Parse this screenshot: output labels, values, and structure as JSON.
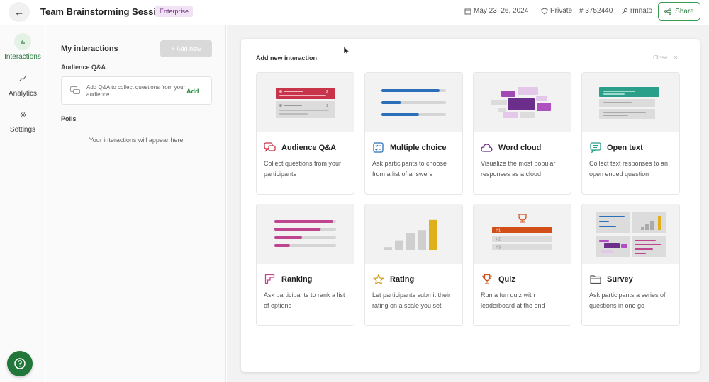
{
  "header": {
    "back_icon": "arrow-left-icon",
    "title": "Team Brainstorming Session",
    "badge": "Enterprise",
    "dates": "May 23–26, 2024",
    "privacy": "Private",
    "code": "# 3752440",
    "owner": "rmnato",
    "share_label": "Share"
  },
  "rail": {
    "items": [
      {
        "label": "Interactions",
        "icon": "bar-chart-icon",
        "active": true
      },
      {
        "label": "Analytics",
        "icon": "trend-up-icon",
        "active": false
      },
      {
        "label": "Settings",
        "icon": "gear-icon",
        "active": false
      }
    ],
    "help_icon": "help-icon"
  },
  "panel": {
    "title": "My interactions",
    "add_new_label": "+ Add new",
    "qa_section": "Audience Q&A",
    "qa_prompt": "Add Q&A to collect questions from your audience",
    "qa_add": "Add",
    "polls_section": "Polls",
    "empty_text": "Your interactions will appear here"
  },
  "dialog": {
    "title": "Add new interaction",
    "close_label": "Close",
    "cards": [
      {
        "title": "Audience Q&A",
        "desc": "Collect questions from your participants",
        "icon": "chat-bubbles-icon",
        "preview_votes": [
          "2",
          "1"
        ]
      },
      {
        "title": "Multiple choice",
        "desc": "Ask participants to choose from a list of answers",
        "icon": "checklist-icon",
        "preview_fractions": [
          0.9,
          0.3,
          0.58
        ]
      },
      {
        "title": "Word cloud",
        "desc": "Visualize the most popular responses as a cloud",
        "icon": "cloud-icon"
      },
      {
        "title": "Open text",
        "desc": "Collect text responses to an open ended question",
        "icon": "message-icon"
      },
      {
        "title": "Ranking",
        "desc": "Ask participants to rank a list of options",
        "icon": "ranking-icon",
        "preview_fractions": [
          0.95,
          0.75,
          0.45,
          0.25
        ]
      },
      {
        "title": "Rating",
        "desc": "Let participants submit their rating on a scale you set",
        "icon": "star-icon",
        "preview_levels": [
          1,
          3,
          5,
          6,
          9
        ]
      },
      {
        "title": "Quiz",
        "desc": "Run a fun quiz with leaderboard at the end",
        "icon": "trophy-icon",
        "preview_ranks": [
          "# 1",
          "# 2",
          "# 3"
        ]
      },
      {
        "title": "Survey",
        "desc": "Ask participants a series of questions in one go",
        "icon": "folder-icon"
      }
    ]
  },
  "colors": {
    "brand_green": "#21773a",
    "qa_red": "#c8354a",
    "mc_blue": "#2a6fb8",
    "cloud_purple": "#6b2e8a",
    "open_teal": "#2aa08a",
    "ranking_pink": "#c0458f",
    "rating_gold": "#e0b01c",
    "quiz_orange": "#d24f1a"
  }
}
